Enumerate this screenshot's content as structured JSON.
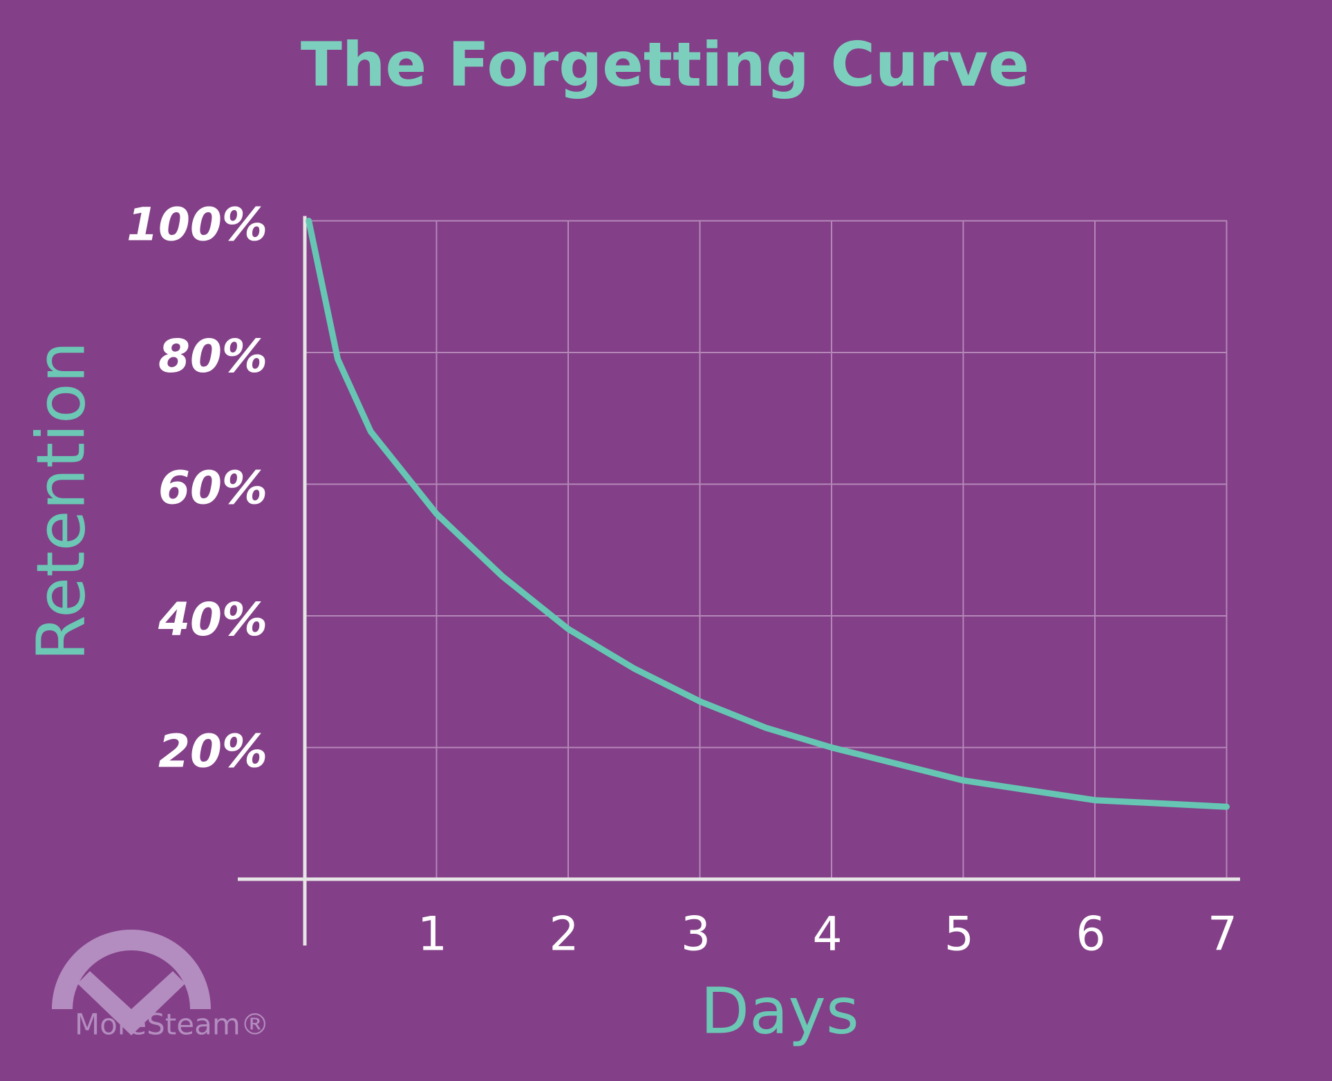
{
  "chart_data": {
    "type": "line",
    "title": "The Forgetting Curve",
    "x_label": "Days",
    "y_label": "Retention",
    "logo": "MoreSteam®",
    "x": [
      0.03,
      0.25,
      0.5,
      1,
      1.5,
      2,
      2.5,
      3,
      3.5,
      4,
      5,
      6,
      7
    ],
    "series": [
      {
        "name": "Retention",
        "color": "#66c6b3",
        "values": [
          100,
          79,
          68,
          55.5,
          46,
          38,
          32,
          27,
          23,
          20,
          15,
          12,
          11
        ]
      }
    ],
    "xlim": [
      0,
      7
    ],
    "xticks": [
      1,
      2,
      3,
      4,
      5,
      6,
      7
    ],
    "ylim": [
      0,
      100
    ],
    "yticks": [
      {
        "value": 20,
        "label": "20%"
      },
      {
        "value": 40,
        "label": "40%"
      },
      {
        "value": 60,
        "label": "60%"
      },
      {
        "value": 80,
        "label": "80%"
      },
      {
        "value": 100,
        "label": "100%"
      }
    ],
    "grid": true
  }
}
